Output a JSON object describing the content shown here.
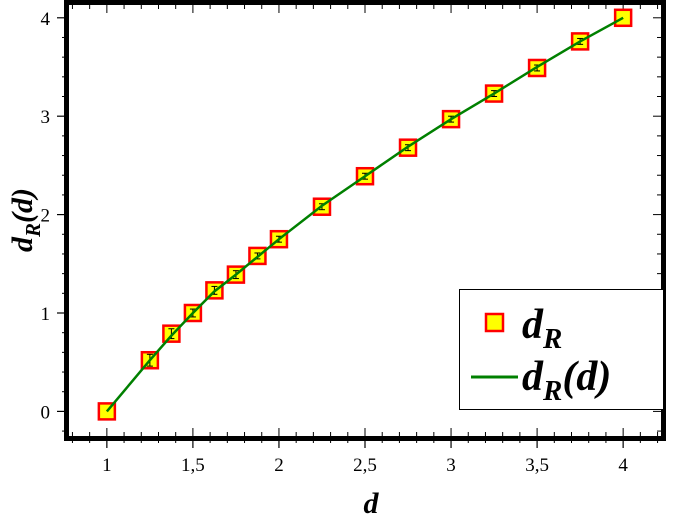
{
  "chart_data": {
    "type": "scatter",
    "xlabel": "d",
    "ylabel": "d_R(d)",
    "xlim": [
      0.78,
      4.22
    ],
    "ylim": [
      -0.25,
      4.13
    ],
    "x_ticks": [
      {
        "value": 1,
        "label": "1"
      },
      {
        "value": 1.5,
        "label": "1,5"
      },
      {
        "value": 2,
        "label": "2"
      },
      {
        "value": 2.5,
        "label": "2,5"
      },
      {
        "value": 3,
        "label": "3"
      },
      {
        "value": 3.5,
        "label": "3,5"
      },
      {
        "value": 4,
        "label": "4"
      }
    ],
    "y_ticks": [
      {
        "value": 0,
        "label": "0"
      },
      {
        "value": 1,
        "label": "1"
      },
      {
        "value": 2,
        "label": "2"
      },
      {
        "value": 3,
        "label": "3"
      },
      {
        "value": 4,
        "label": "4"
      }
    ],
    "grid": false,
    "legend_position": "bottom-right",
    "series": [
      {
        "name": "d_R",
        "kind": "markers",
        "marker": "square",
        "fill_color": "#ffff00",
        "edge_color": "#ff0000",
        "error_bars": true,
        "x": [
          1.0,
          1.25,
          1.375,
          1.5,
          1.625,
          1.75,
          1.875,
          2.0,
          2.25,
          2.5,
          2.75,
          3.0,
          3.25,
          3.5,
          3.75,
          4.0
        ],
        "y": [
          0.0,
          0.52,
          0.79,
          1.0,
          1.23,
          1.39,
          1.58,
          1.75,
          2.08,
          2.39,
          2.68,
          2.97,
          3.23,
          3.49,
          3.76,
          4.0
        ],
        "yerr": [
          0.0,
          0.06,
          0.05,
          0.04,
          0.04,
          0.04,
          0.03,
          0.03,
          0.03,
          0.03,
          0.03,
          0.03,
          0.03,
          0.03,
          0.03,
          0.0
        ]
      },
      {
        "name": "d_R(d)",
        "kind": "line",
        "color": "#008000",
        "x": [
          1.0,
          1.25,
          1.375,
          1.5,
          1.625,
          1.75,
          1.875,
          2.0,
          2.25,
          2.5,
          2.75,
          3.0,
          3.25,
          3.5,
          3.75,
          4.0
        ],
        "y": [
          0.0,
          0.52,
          0.77,
          1.0,
          1.22,
          1.39,
          1.57,
          1.75,
          2.09,
          2.39,
          2.69,
          2.97,
          3.23,
          3.5,
          3.76,
          4.0
        ]
      }
    ],
    "legend": [
      {
        "label_main": "d",
        "label_sub": "R",
        "label_suffix": "",
        "series": 0
      },
      {
        "label_main": "d",
        "label_sub": "R",
        "label_suffix": "(d)",
        "series": 1
      }
    ]
  }
}
